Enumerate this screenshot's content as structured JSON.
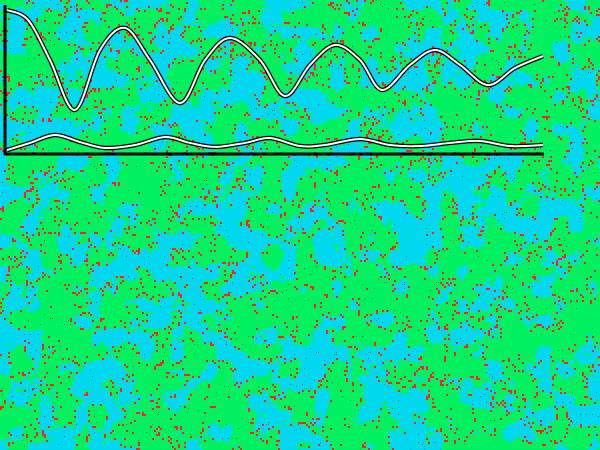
{
  "colors": {
    "ground": "#00f060",
    "water": "#00d8f0",
    "dots": "#ff2020",
    "axis": "#000000",
    "line_fill": "#ffffff",
    "line_outline": "#000000"
  },
  "chart_data": {
    "type": "line",
    "title": "",
    "xlabel": "",
    "ylabel": "",
    "xlim": [
      0,
      538
    ],
    "ylim": [
      0,
      100
    ],
    "grid": false,
    "legend": "none",
    "series": [
      {
        "x": [
          2,
          23,
          45,
          70,
          95,
          120,
          145,
          175,
          200,
          225,
          255,
          280,
          305,
          330,
          355,
          377,
          405,
          430,
          455,
          483,
          510,
          538
        ],
        "y": [
          96.6,
          89.9,
          62.8,
          29.1,
          69.6,
          84.5,
          62.8,
          33.8,
          62.8,
          77.7,
          62.8,
          38.5,
          59.5,
          73.0,
          62.8,
          42.6,
          59.5,
          69.6,
          59.5,
          45.9,
          57.4,
          65.5
        ]
      },
      {
        "x": [
          2,
          25,
          50,
          75,
          100,
          130,
          160,
          185,
          210,
          240,
          265,
          295,
          320,
          355,
          385,
          415,
          445,
          475,
          505,
          538
        ],
        "y": [
          2.0,
          6.8,
          12.2,
          7.4,
          3.4,
          5.4,
          10.8,
          6.8,
          4.1,
          6.8,
          10.1,
          4.7,
          5.4,
          9.5,
          5.4,
          4.7,
          6.8,
          8.1,
          4.7,
          5.4
        ]
      }
    ]
  }
}
